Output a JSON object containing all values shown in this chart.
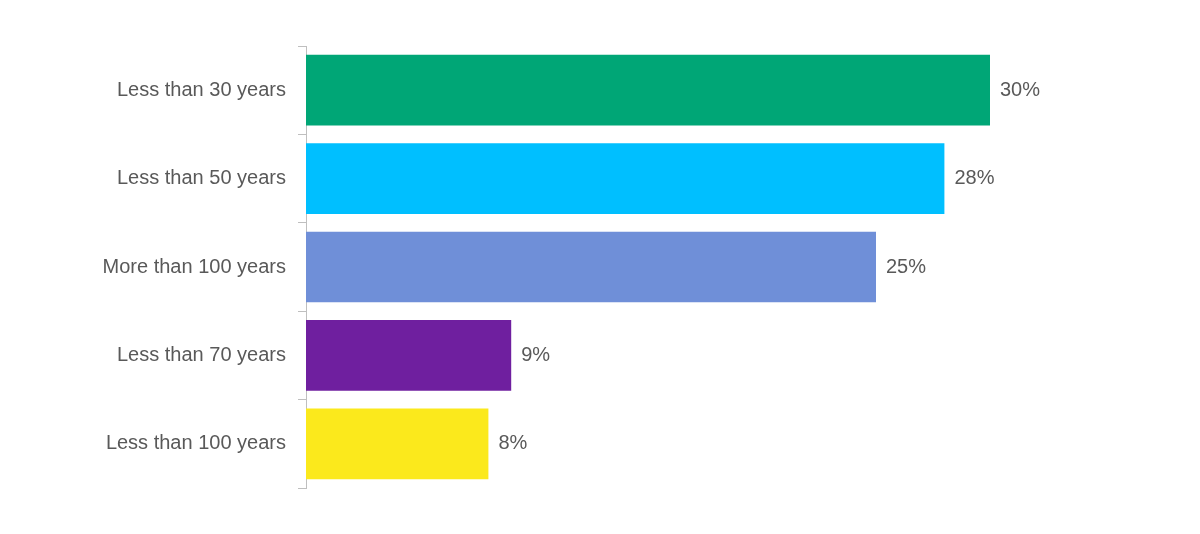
{
  "chart_data": {
    "type": "bar",
    "orientation": "horizontal",
    "categories": [
      "Less than 30 years",
      "Less than 50 years",
      "More than 100 years",
      "Less than 70 years",
      "Less than 100 years"
    ],
    "values": [
      30,
      28,
      25,
      9,
      8
    ],
    "colors": [
      "#00a676",
      "#00bfff",
      "#6f8fd8",
      "#6f1f9f",
      "#fbe91c"
    ],
    "value_labels": [
      "30%",
      "28%",
      "25%",
      "9%",
      "8%"
    ],
    "grid": false,
    "legend": false
  }
}
